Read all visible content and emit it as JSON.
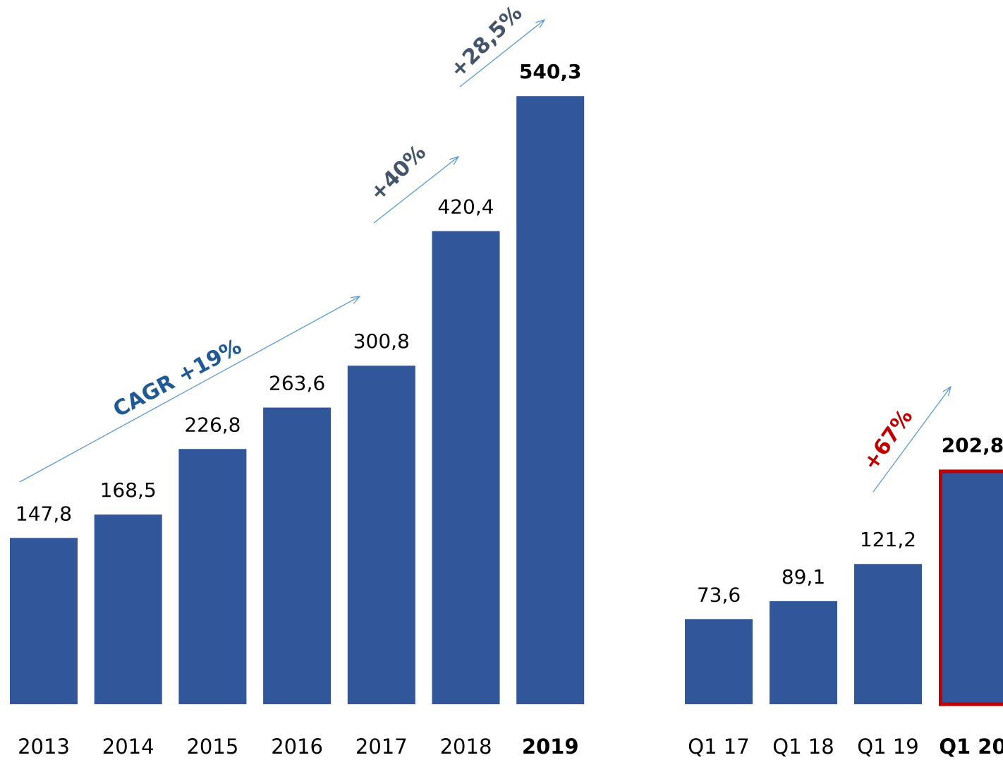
{
  "chart_data": [
    {
      "type": "bar",
      "categories": [
        "2013",
        "2014",
        "2015",
        "2016",
        "2017",
        "2018",
        "2019"
      ],
      "values": [
        147.8,
        168.5,
        226.8,
        263.6,
        300.8,
        420.4,
        540.3
      ],
      "value_labels": [
        "147,8",
        "168,5",
        "226,8",
        "263,6",
        "300,8",
        "420,4",
        "540,3"
      ],
      "color": "#31569a",
      "annotations": [
        "CAGR +19%",
        "+40%",
        "+28,5%"
      ]
    },
    {
      "type": "bar",
      "categories": [
        "Q1 17",
        "Q1 18",
        "Q1 19",
        "Q1 20"
      ],
      "values": [
        73.6,
        89.1,
        121.2,
        202.8
      ],
      "value_labels": [
        "73,6",
        "89,1",
        "121,2",
        "202,8"
      ],
      "color": "#31569a",
      "highlight": {
        "index": 3,
        "color": "#c00000"
      },
      "annotations": [
        "+67%"
      ]
    }
  ]
}
